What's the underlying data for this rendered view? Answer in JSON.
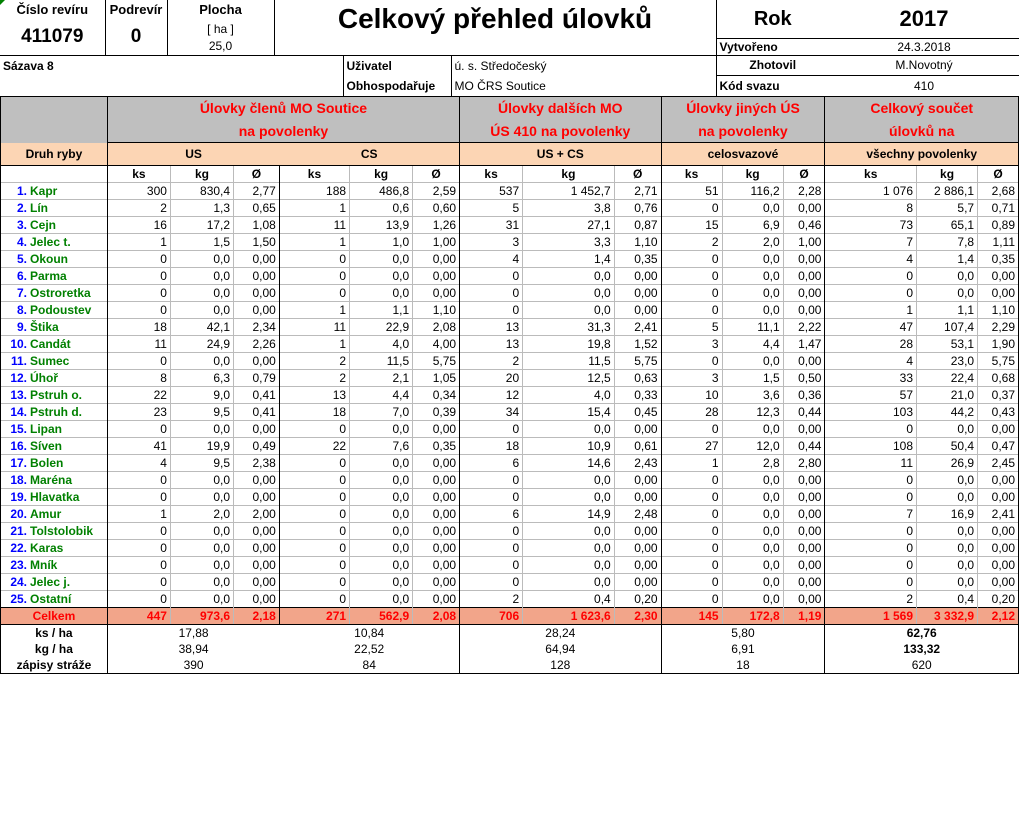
{
  "header": {
    "cislo_reviru_label": "Číslo revíru",
    "cislo_reviru": "411079",
    "podrevir_label": "Podrevír",
    "podrevir": "0",
    "plocha_label": "Plocha",
    "plocha_unit": "[ ha ]",
    "plocha": "25,0",
    "title": "Celkový přehled úlovků",
    "rok_label": "Rok",
    "rok": "2017",
    "vytvoreno_label": "Vytvořeno",
    "vytvoreno": "24.3.2018",
    "zhotovil_label": "Zhotovil",
    "zhotovil": "M.Novotný",
    "kod_svazu_label": "Kód svazu",
    "kod_svazu": "410",
    "revir_name": "Sázava 8",
    "uzivatel_label": "Uživatel",
    "uzivatel": "ú. s. Středočeský",
    "obhospodaruje_label": "Obhospodařuje",
    "obhospodaruje": "MO ČRS Soutice"
  },
  "groups": {
    "g1_line1": "Úlovky členů MO Soutice",
    "g1_line2": "na povolenky",
    "g2_line1": "Úlovky dalších MO",
    "g2_line2": "ÚS 410 na povolenky",
    "g3_line1": "Úlovky jiných ÚS",
    "g3_line2": "na povolenky",
    "g4_line1": "Celkový součet",
    "g4_line2": "úlovků na"
  },
  "subheader": {
    "druh_ryby": "Druh ryby",
    "us": "US",
    "cs": "CS",
    "us_cs": "US + CS",
    "celosvazove": "celosvazové",
    "vsechny": "všechny povolenky"
  },
  "units": {
    "ks": "ks",
    "kg": "kg",
    "avg": "Ø"
  },
  "fish": [
    {
      "n": "1.",
      "name": "Kapr",
      "v": [
        "300",
        "830,4",
        "2,77",
        "188",
        "486,8",
        "2,59",
        "537",
        "1 452,7",
        "2,71",
        "51",
        "116,2",
        "2,28",
        "1 076",
        "2 886,1",
        "2,68"
      ]
    },
    {
      "n": "2.",
      "name": "Lín",
      "v": [
        "2",
        "1,3",
        "0,65",
        "1",
        "0,6",
        "0,60",
        "5",
        "3,8",
        "0,76",
        "0",
        "0,0",
        "0,00",
        "8",
        "5,7",
        "0,71"
      ]
    },
    {
      "n": "3.",
      "name": "Cejn",
      "v": [
        "16",
        "17,2",
        "1,08",
        "11",
        "13,9",
        "1,26",
        "31",
        "27,1",
        "0,87",
        "15",
        "6,9",
        "0,46",
        "73",
        "65,1",
        "0,89"
      ]
    },
    {
      "n": "4.",
      "name": "Jelec t.",
      "v": [
        "1",
        "1,5",
        "1,50",
        "1",
        "1,0",
        "1,00",
        "3",
        "3,3",
        "1,10",
        "2",
        "2,0",
        "1,00",
        "7",
        "7,8",
        "1,11"
      ]
    },
    {
      "n": "5.",
      "name": "Okoun",
      "v": [
        "0",
        "0,0",
        "0,00",
        "0",
        "0,0",
        "0,00",
        "4",
        "1,4",
        "0,35",
        "0",
        "0,0",
        "0,00",
        "4",
        "1,4",
        "0,35"
      ]
    },
    {
      "n": "6.",
      "name": "Parma",
      "v": [
        "0",
        "0,0",
        "0,00",
        "0",
        "0,0",
        "0,00",
        "0",
        "0,0",
        "0,00",
        "0",
        "0,0",
        "0,00",
        "0",
        "0,0",
        "0,00"
      ]
    },
    {
      "n": "7.",
      "name": "Ostroretka",
      "v": [
        "0",
        "0,0",
        "0,00",
        "0",
        "0,0",
        "0,00",
        "0",
        "0,0",
        "0,00",
        "0",
        "0,0",
        "0,00",
        "0",
        "0,0",
        "0,00"
      ]
    },
    {
      "n": "8.",
      "name": "Podoustev",
      "v": [
        "0",
        "0,0",
        "0,00",
        "1",
        "1,1",
        "1,10",
        "0",
        "0,0",
        "0,00",
        "0",
        "0,0",
        "0,00",
        "1",
        "1,1",
        "1,10"
      ]
    },
    {
      "n": "9.",
      "name": "Štika",
      "v": [
        "18",
        "42,1",
        "2,34",
        "11",
        "22,9",
        "2,08",
        "13",
        "31,3",
        "2,41",
        "5",
        "11,1",
        "2,22",
        "47",
        "107,4",
        "2,29"
      ]
    },
    {
      "n": "10.",
      "name": "Candát",
      "v": [
        "11",
        "24,9",
        "2,26",
        "1",
        "4,0",
        "4,00",
        "13",
        "19,8",
        "1,52",
        "3",
        "4,4",
        "1,47",
        "28",
        "53,1",
        "1,90"
      ]
    },
    {
      "n": "11.",
      "name": "Sumec",
      "v": [
        "0",
        "0,0",
        "0,00",
        "2",
        "11,5",
        "5,75",
        "2",
        "11,5",
        "5,75",
        "0",
        "0,0",
        "0,00",
        "4",
        "23,0",
        "5,75"
      ]
    },
    {
      "n": "12.",
      "name": "Úhoř",
      "v": [
        "8",
        "6,3",
        "0,79",
        "2",
        "2,1",
        "1,05",
        "20",
        "12,5",
        "0,63",
        "3",
        "1,5",
        "0,50",
        "33",
        "22,4",
        "0,68"
      ]
    },
    {
      "n": "13.",
      "name": "Pstruh o.",
      "v": [
        "22",
        "9,0",
        "0,41",
        "13",
        "4,4",
        "0,34",
        "12",
        "4,0",
        "0,33",
        "10",
        "3,6",
        "0,36",
        "57",
        "21,0",
        "0,37"
      ]
    },
    {
      "n": "14.",
      "name": "Pstruh d.",
      "v": [
        "23",
        "9,5",
        "0,41",
        "18",
        "7,0",
        "0,39",
        "34",
        "15,4",
        "0,45",
        "28",
        "12,3",
        "0,44",
        "103",
        "44,2",
        "0,43"
      ]
    },
    {
      "n": "15.",
      "name": "Lipan",
      "v": [
        "0",
        "0,0",
        "0,00",
        "0",
        "0,0",
        "0,00",
        "0",
        "0,0",
        "0,00",
        "0",
        "0,0",
        "0,00",
        "0",
        "0,0",
        "0,00"
      ]
    },
    {
      "n": "16.",
      "name": "Síven",
      "v": [
        "41",
        "19,9",
        "0,49",
        "22",
        "7,6",
        "0,35",
        "18",
        "10,9",
        "0,61",
        "27",
        "12,0",
        "0,44",
        "108",
        "50,4",
        "0,47"
      ]
    },
    {
      "n": "17.",
      "name": "Bolen",
      "v": [
        "4",
        "9,5",
        "2,38",
        "0",
        "0,0",
        "0,00",
        "6",
        "14,6",
        "2,43",
        "1",
        "2,8",
        "2,80",
        "11",
        "26,9",
        "2,45"
      ]
    },
    {
      "n": "18.",
      "name": "Maréna",
      "v": [
        "0",
        "0,0",
        "0,00",
        "0",
        "0,0",
        "0,00",
        "0",
        "0,0",
        "0,00",
        "0",
        "0,0",
        "0,00",
        "0",
        "0,0",
        "0,00"
      ]
    },
    {
      "n": "19.",
      "name": "Hlavatka",
      "v": [
        "0",
        "0,0",
        "0,00",
        "0",
        "0,0",
        "0,00",
        "0",
        "0,0",
        "0,00",
        "0",
        "0,0",
        "0,00",
        "0",
        "0,0",
        "0,00"
      ]
    },
    {
      "n": "20.",
      "name": "Amur",
      "v": [
        "1",
        "2,0",
        "2,00",
        "0",
        "0,0",
        "0,00",
        "6",
        "14,9",
        "2,48",
        "0",
        "0,0",
        "0,00",
        "7",
        "16,9",
        "2,41"
      ]
    },
    {
      "n": "21.",
      "name": "Tolstolobik",
      "v": [
        "0",
        "0,0",
        "0,00",
        "0",
        "0,0",
        "0,00",
        "0",
        "0,0",
        "0,00",
        "0",
        "0,0",
        "0,00",
        "0",
        "0,0",
        "0,00"
      ]
    },
    {
      "n": "22.",
      "name": "Karas",
      "v": [
        "0",
        "0,0",
        "0,00",
        "0",
        "0,0",
        "0,00",
        "0",
        "0,0",
        "0,00",
        "0",
        "0,0",
        "0,00",
        "0",
        "0,0",
        "0,00"
      ]
    },
    {
      "n": "23.",
      "name": "Mník",
      "v": [
        "0",
        "0,0",
        "0,00",
        "0",
        "0,0",
        "0,00",
        "0",
        "0,0",
        "0,00",
        "0",
        "0,0",
        "0,00",
        "0",
        "0,0",
        "0,00"
      ]
    },
    {
      "n": "24.",
      "name": "Jelec j.",
      "v": [
        "0",
        "0,0",
        "0,00",
        "0",
        "0,0",
        "0,00",
        "0",
        "0,0",
        "0,00",
        "0",
        "0,0",
        "0,00",
        "0",
        "0,0",
        "0,00"
      ]
    },
    {
      "n": "25.",
      "name": "Ostatní",
      "v": [
        "0",
        "0,0",
        "0,00",
        "0",
        "0,0",
        "0,00",
        "2",
        "0,4",
        "0,20",
        "0",
        "0,0",
        "0,00",
        "2",
        "0,4",
        "0,20"
      ]
    }
  ],
  "celkem": {
    "label": "Celkem",
    "v": [
      "447",
      "973,6",
      "2,18",
      "271",
      "562,9",
      "2,08",
      "706",
      "1 623,6",
      "2,30",
      "145",
      "172,8",
      "1,19",
      "1 569",
      "3 332,9",
      "2,12"
    ]
  },
  "stats": [
    {
      "label": "ks / ha",
      "us": "17,88",
      "cs": "10,84",
      "uscs": "28,24",
      "celo": "5,80",
      "total": "62,76"
    },
    {
      "label": "kg / ha",
      "us": "38,94",
      "cs": "22,52",
      "uscs": "64,94",
      "celo": "6,91",
      "total": "133,32"
    },
    {
      "label": "zápisy stráže",
      "us": "390",
      "cs": "84",
      "uscs": "128",
      "celo": "18",
      "total": "620"
    }
  ]
}
